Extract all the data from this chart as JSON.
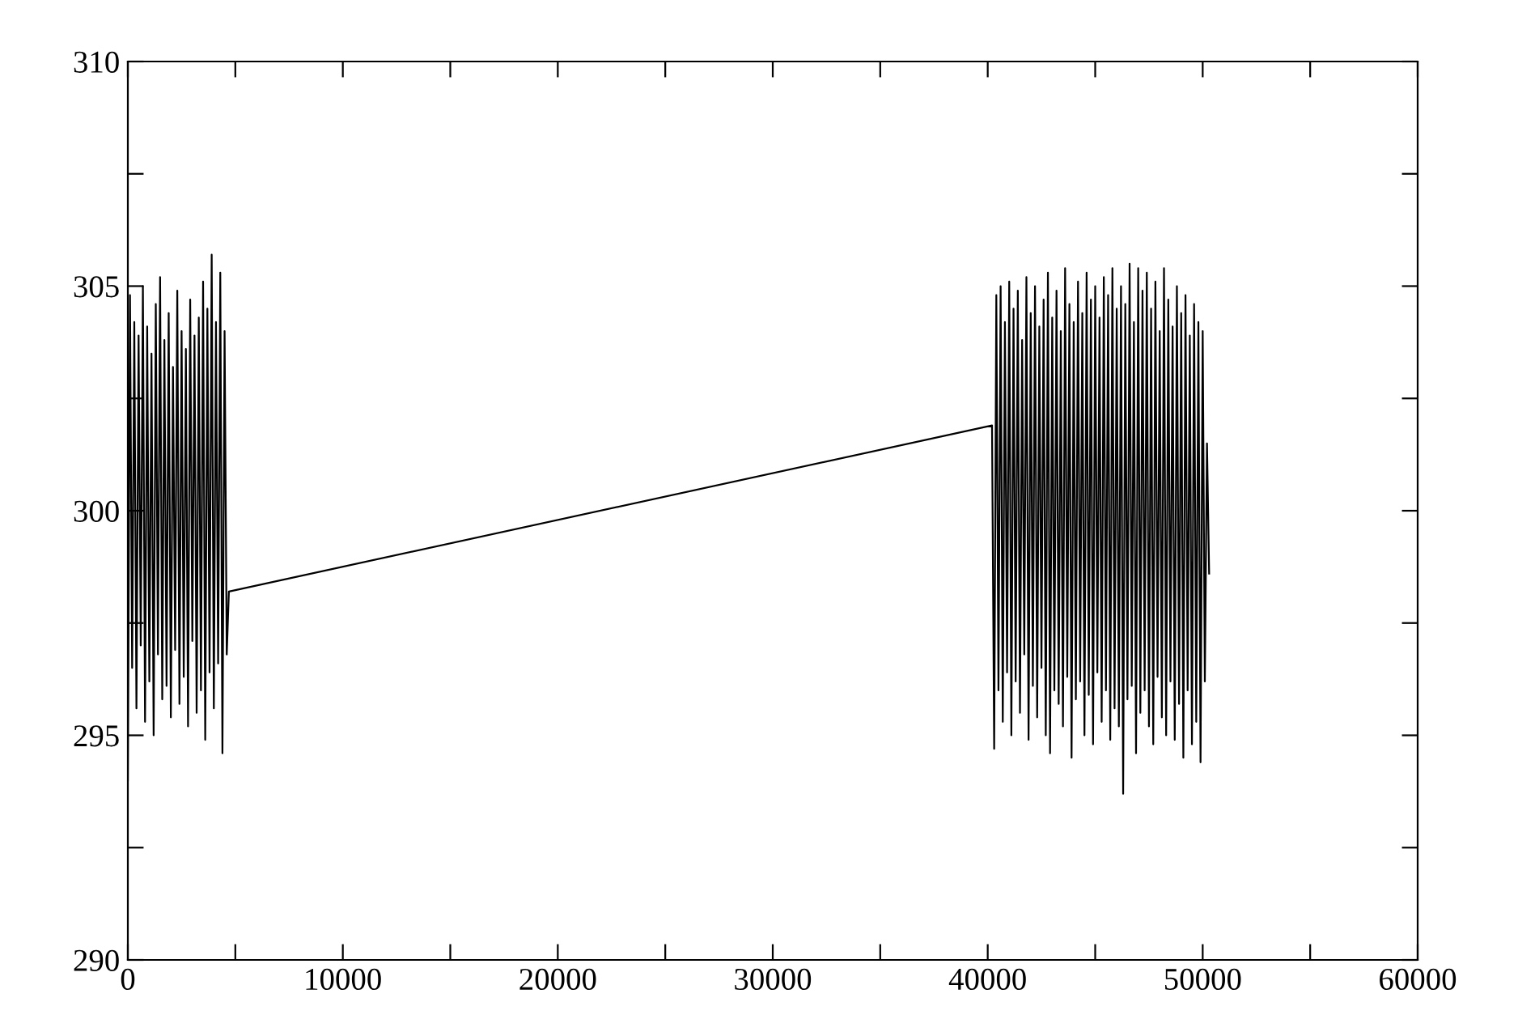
{
  "chart_data": {
    "type": "line",
    "xlim": [
      0,
      60000
    ],
    "ylim": [
      290,
      310
    ],
    "xticks": [
      0,
      {
        "value": 5000,
        "label": null
      },
      10000,
      {
        "value": 15000,
        "label": null
      },
      20000,
      {
        "value": 25000,
        "label": null
      },
      30000,
      {
        "value": 35000,
        "label": null
      },
      40000,
      {
        "value": 45000,
        "label": null
      },
      50000,
      {
        "value": 55000,
        "label": null
      },
      60000
    ],
    "yticks": [
      290,
      {
        "value": 292.5,
        "label": null
      },
      295,
      {
        "value": 297.5,
        "label": null
      },
      300,
      {
        "value": 302.5,
        "label": null
      },
      305,
      {
        "value": 307.5,
        "label": null
      },
      310
    ],
    "grid": false,
    "marker": "none",
    "line_style": "solid",
    "series": [
      {
        "color": "#000000",
        "x": [
          0,
          100,
          200,
          300,
          400,
          500,
          600,
          700,
          800,
          900,
          1000,
          1100,
          1200,
          1300,
          1400,
          1500,
          1600,
          1700,
          1800,
          1900,
          2000,
          2100,
          2200,
          2300,
          2400,
          2500,
          2600,
          2700,
          2800,
          2900,
          3000,
          3100,
          3200,
          3300,
          3400,
          3500,
          3600,
          3700,
          3800,
          3900,
          4000,
          4100,
          4200,
          4300,
          4400,
          4500,
          4600,
          4700,
          40200,
          40300,
          40400,
          40500,
          40600,
          40700,
          40800,
          40900,
          41000,
          41100,
          41200,
          41300,
          41400,
          41500,
          41600,
          41700,
          41800,
          41900,
          42000,
          42100,
          42200,
          42300,
          42400,
          42500,
          42600,
          42700,
          42800,
          42900,
          43000,
          43100,
          43200,
          43300,
          43400,
          43500,
          43600,
          43700,
          43800,
          43900,
          44000,
          44100,
          44200,
          44300,
          44400,
          44500,
          44600,
          44700,
          44800,
          44900,
          45000,
          45100,
          45200,
          45300,
          45400,
          45500,
          45600,
          45700,
          45800,
          45900,
          46000,
          46100,
          46200,
          46300,
          46400,
          46500,
          46600,
          46700,
          46800,
          46900,
          47000,
          47100,
          47200,
          47300,
          47400,
          47500,
          47600,
          47700,
          47800,
          47900,
          48000,
          48100,
          48200,
          48300,
          48400,
          48500,
          48600,
          48700,
          48800,
          48900,
          49000,
          49100,
          49200,
          49300,
          49400,
          49500,
          49600,
          49700,
          49800,
          49900,
          50000,
          50100,
          50200,
          50300
        ],
        "values": [
          294.0,
          304.8,
          296.5,
          304.2,
          295.6,
          303.9,
          297.0,
          305.0,
          295.3,
          304.1,
          296.2,
          303.5,
          295.0,
          304.6,
          296.8,
          305.2,
          295.8,
          303.8,
          296.1,
          304.4,
          295.4,
          303.2,
          296.9,
          304.9,
          295.7,
          304.0,
          296.3,
          303.6,
          295.2,
          304.7,
          297.1,
          303.9,
          295.5,
          304.3,
          296.0,
          305.1,
          294.9,
          304.5,
          296.4,
          305.7,
          295.6,
          304.2,
          296.6,
          305.3,
          294.6,
          304.0,
          296.8,
          298.2,
          301.9,
          294.7,
          304.8,
          296.0,
          305.0,
          295.3,
          304.2,
          296.4,
          305.1,
          295.0,
          304.5,
          296.2,
          304.9,
          295.5,
          303.8,
          296.8,
          305.2,
          294.9,
          304.4,
          296.1,
          305.0,
          295.4,
          304.1,
          296.5,
          304.7,
          295.0,
          305.3,
          294.6,
          304.3,
          296.0,
          304.9,
          295.7,
          304.0,
          295.2,
          305.4,
          296.3,
          304.6,
          294.5,
          304.2,
          295.8,
          305.1,
          296.2,
          304.4,
          295.0,
          305.3,
          295.9,
          304.7,
          294.8,
          305.0,
          296.4,
          304.3,
          295.3,
          305.2,
          296.0,
          304.8,
          294.9,
          305.4,
          295.6,
          304.5,
          295.2,
          305.0,
          293.7,
          304.6,
          295.8,
          305.5,
          296.1,
          304.2,
          294.6,
          305.4,
          295.5,
          304.9,
          296.0,
          305.3,
          295.2,
          304.5,
          294.8,
          305.1,
          296.3,
          304.0,
          295.4,
          305.4,
          295.0,
          304.7,
          296.2,
          304.1,
          294.9,
          305.0,
          295.7,
          304.4,
          294.5,
          304.8,
          296.0,
          303.9,
          294.8,
          304.6,
          295.3,
          304.2,
          294.4,
          304.0,
          296.2,
          301.5,
          298.6
        ]
      }
    ]
  }
}
